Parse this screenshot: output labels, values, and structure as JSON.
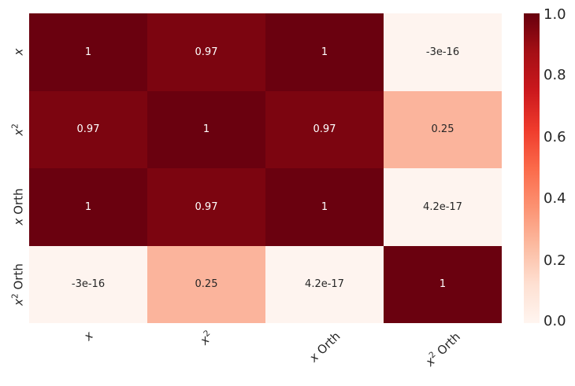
{
  "figure": {
    "background": "#ffffff"
  },
  "heatmap": {
    "y_labels": [
      {
        "var": "x",
        "sup": "",
        "rest": ""
      },
      {
        "var": "x",
        "sup": "2",
        "rest": ""
      },
      {
        "var": "x",
        "sup": "",
        "rest": " Orth"
      },
      {
        "var": "x",
        "sup": "2",
        "rest": " Orth"
      }
    ],
    "x_labels": [
      {
        "var": "x",
        "sup": "",
        "rest": ""
      },
      {
        "var": "x",
        "sup": "2",
        "rest": ""
      },
      {
        "var": "x",
        "sup": "",
        "rest": " Orth"
      },
      {
        "var": "x",
        "sup": "2",
        "rest": " Orth"
      }
    ],
    "cells": [
      [
        {
          "text": "1",
          "bg": "#6a010f",
          "fg": "#ffffff"
        },
        {
          "text": "0.97",
          "bg": "#7c0510",
          "fg": "#ffffff"
        },
        {
          "text": "1",
          "bg": "#6a010f",
          "fg": "#ffffff"
        },
        {
          "text": "-3e-16",
          "bg": "#fef4ef",
          "fg": "#262626"
        }
      ],
      [
        {
          "text": "0.97",
          "bg": "#7c0510",
          "fg": "#ffffff"
        },
        {
          "text": "1",
          "bg": "#6a010f",
          "fg": "#ffffff"
        },
        {
          "text": "0.97",
          "bg": "#7c0510",
          "fg": "#ffffff"
        },
        {
          "text": "0.25",
          "bg": "#fbb49c",
          "fg": "#262626"
        }
      ],
      [
        {
          "text": "1",
          "bg": "#6a010f",
          "fg": "#ffffff"
        },
        {
          "text": "0.97",
          "bg": "#7c0510",
          "fg": "#ffffff"
        },
        {
          "text": "1",
          "bg": "#6a010f",
          "fg": "#ffffff"
        },
        {
          "text": "4.2e-17",
          "bg": "#fef4ef",
          "fg": "#262626"
        }
      ],
      [
        {
          "text": "-3e-16",
          "bg": "#fef4ef",
          "fg": "#262626"
        },
        {
          "text": "0.25",
          "bg": "#fbb49c",
          "fg": "#262626"
        },
        {
          "text": "4.2e-17",
          "bg": "#fef4ef",
          "fg": "#262626"
        },
        {
          "text": "1",
          "bg": "#6a010f",
          "fg": "#ffffff"
        }
      ]
    ]
  },
  "colorbar": {
    "ticks": [
      "1.0",
      "0.8",
      "0.6",
      "0.4",
      "0.2",
      "0.0"
    ],
    "gradient": [
      "#67000d",
      "#a50f15",
      "#cb181d",
      "#ef3b2c",
      "#fb6a4a",
      "#fc9272",
      "#fcbba1",
      "#fee0d2",
      "#fff5f0"
    ]
  },
  "chart_data": {
    "type": "heatmap",
    "title": "",
    "x_categories": [
      "x",
      "x²",
      "x Orth",
      "x² Orth"
    ],
    "y_categories": [
      "x",
      "x²",
      "x Orth",
      "x² Orth"
    ],
    "values": [
      [
        1,
        0.97,
        1,
        -3e-16
      ],
      [
        0.97,
        1,
        0.97,
        0.25
      ],
      [
        1,
        0.97,
        1,
        4.2e-17
      ],
      [
        -3e-16,
        0.25,
        4.2e-17,
        1
      ]
    ],
    "value_labels": [
      [
        "1",
        "0.97",
        "1",
        "-3e-16"
      ],
      [
        "0.97",
        "1",
        "0.97",
        "0.25"
      ],
      [
        "1",
        "0.97",
        "1",
        "4.2e-17"
      ],
      [
        "-3e-16",
        "0.25",
        "4.2e-17",
        "1"
      ]
    ],
    "colormap": "Reds",
    "vmin": 0.0,
    "vmax": 1.0,
    "colorbar_ticks": [
      1.0,
      0.8,
      0.6,
      0.4,
      0.2,
      0.0
    ],
    "legend_position": "right",
    "grid": false,
    "annotated": true
  }
}
